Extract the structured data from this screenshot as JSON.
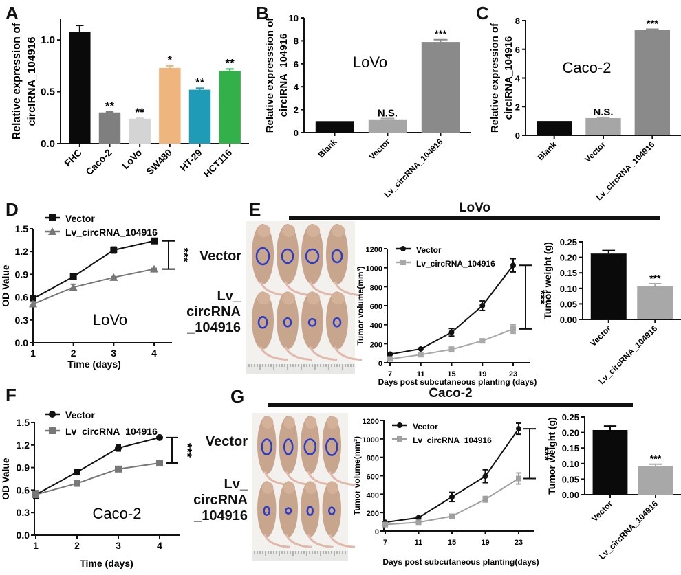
{
  "panels": {
    "A": "A",
    "B": "B",
    "C": "C",
    "D": "D",
    "E": "E",
    "F": "F",
    "G": "G"
  },
  "headers": {
    "E": "LoVo",
    "G": "Caco-2"
  },
  "mice_labels": {
    "vector": "Vector",
    "lv_line1": "Lv_",
    "lv_line2": "circRNA",
    "lv_line3": "_104916"
  },
  "chart_data": [
    {
      "id": "A",
      "type": "bar",
      "title": "",
      "ylabel": "Relative expression of circIRNA_104916",
      "ylabel_lines": [
        "Relative  expression of",
        "circIRNA_104916"
      ],
      "xlabel": "",
      "categories": [
        "FHC",
        "Caco-2",
        "LoVo",
        "SW480",
        "HT-29",
        "HCT116"
      ],
      "values": [
        1.08,
        0.3,
        0.24,
        0.73,
        0.52,
        0.7
      ],
      "errors": [
        0.06,
        0.005,
        0.005,
        0.02,
        0.015,
        0.02
      ],
      "significance": [
        "",
        "**",
        "**",
        "*",
        "**",
        "**"
      ],
      "colors": [
        "#0a0a0a",
        "#7f7f7f",
        "#d4d4d4",
        "#efb57e",
        "#1f9bb5",
        "#33b04a"
      ],
      "ylim": [
        0,
        1.2
      ],
      "yticks": [
        0.0,
        0.5,
        1.0
      ],
      "ytick_labels": [
        "0.0",
        "0.5",
        "1.0"
      ]
    },
    {
      "id": "B",
      "type": "bar",
      "annotation": "LoVo",
      "ylabel_lines": [
        "Relative  expresssion of",
        "circIRNA_104916"
      ],
      "categories": [
        "Blank",
        "Vector",
        "Lv_circRNA_104916"
      ],
      "values": [
        1.0,
        1.15,
        7.9
      ],
      "errors": [
        0,
        0.08,
        0.2
      ],
      "significance": [
        "",
        "N.S.",
        "***"
      ],
      "colors": [
        "#0a0a0a",
        "#a6a6a6",
        "#8a8a8a"
      ],
      "ylim": [
        0,
        10
      ],
      "yticks": [
        0,
        2,
        4,
        6,
        8,
        10
      ],
      "ytick_labels": [
        "0",
        "2",
        "4",
        "6",
        "8",
        "10"
      ]
    },
    {
      "id": "C",
      "type": "bar",
      "annotation": "Caco-2",
      "ylabel_lines": [
        "Relative  expression of",
        "circIRNA_104916"
      ],
      "categories": [
        "Blank",
        "Vector",
        "Lv_circRNA_104916"
      ],
      "values": [
        1.0,
        1.2,
        7.35
      ],
      "errors": [
        0,
        0.05,
        0.05
      ],
      "significance": [
        "",
        "N.S.",
        "***"
      ],
      "colors": [
        "#0a0a0a",
        "#a6a6a6",
        "#8a8a8a"
      ],
      "ylim": [
        0,
        8
      ],
      "yticks": [
        0,
        2,
        4,
        6,
        8
      ],
      "ytick_labels": [
        "0",
        "2",
        "4",
        "6",
        "8"
      ]
    },
    {
      "id": "D",
      "type": "line",
      "annotation": "LoVo",
      "xlabel": "Time (days)",
      "ylabel": "OD Value",
      "x": [
        1,
        2,
        3,
        4
      ],
      "series": [
        {
          "name": "Vector",
          "values": [
            0.58,
            0.87,
            1.22,
            1.34
          ],
          "errors": [
            0.02,
            0.03,
            0.04,
            0.01
          ],
          "color": "#111111",
          "marker": "square"
        },
        {
          "name": "Lv_circRNA_104916",
          "values": [
            0.51,
            0.73,
            0.86,
            0.97
          ],
          "errors": [
            0.03,
            0.04,
            0.01,
            0.01
          ],
          "color": "#777777",
          "marker": "triangle"
        }
      ],
      "significance": "***",
      "xlim": [
        1,
        4
      ],
      "ylim": [
        0,
        1.5
      ],
      "xticks": [
        1,
        2,
        3,
        4
      ],
      "yticks": [
        0.0,
        0.3,
        0.6,
        0.9,
        1.2,
        1.5
      ],
      "ytick_labels": [
        "0.0",
        "0.3",
        "0.6",
        "0.9",
        "1.2",
        "1.5"
      ],
      "legend": "top-left"
    },
    {
      "id": "E-volume",
      "type": "line",
      "xlabel": "Days post subcutaneous planting (days)",
      "ylabel": "Tumor volume(mm³)",
      "x": [
        7,
        11,
        15,
        19,
        23
      ],
      "series": [
        {
          "name": "Vector",
          "values": [
            90,
            145,
            320,
            600,
            1025
          ],
          "errors": [
            8,
            8,
            40,
            50,
            70
          ],
          "color": "#111111",
          "marker": "circle"
        },
        {
          "name": "Lv_circRNA_104916",
          "values": [
            40,
            85,
            140,
            230,
            355
          ],
          "errors": [
            8,
            10,
            25,
            20,
            45
          ],
          "color": "#a8a8a8",
          "marker": "square"
        }
      ],
      "significance": "***",
      "ylim": [
        0,
        1200
      ],
      "xticks": [
        7,
        11,
        15,
        19,
        23
      ],
      "yticks": [
        0,
        200,
        400,
        600,
        800,
        1000,
        1200
      ],
      "ytick_labels": [
        "0",
        "200",
        "400",
        "600",
        "800",
        "1000",
        "1200"
      ],
      "legend": "top-left"
    },
    {
      "id": "E-weight",
      "type": "bar",
      "ylabel": "Tumor weight (g)",
      "categories": [
        "Vector",
        "Lv_circRNA_104916"
      ],
      "values": [
        0.212,
        0.107
      ],
      "errors": [
        0.01,
        0.008
      ],
      "significance": [
        "",
        "***"
      ],
      "colors": [
        "#0a0a0a",
        "#a8a8a8"
      ],
      "ylim": [
        0,
        0.25
      ],
      "yticks": [
        0,
        0.05,
        0.1,
        0.15,
        0.2,
        0.25
      ],
      "ytick_labels": [
        "0.00",
        "0.05",
        "0.10",
        "0.15",
        "0.20",
        "0.25"
      ]
    },
    {
      "id": "F",
      "type": "line",
      "annotation": "Caco-2",
      "xlabel": "Time (days)",
      "ylabel": "OD Value",
      "x": [
        1,
        2,
        3,
        4
      ],
      "series": [
        {
          "name": "Vector",
          "values": [
            0.54,
            0.84,
            1.16,
            1.3
          ],
          "errors": [
            0.05,
            0.03,
            0.04,
            0.01
          ],
          "color": "#111111",
          "marker": "circle"
        },
        {
          "name": "Lv_circRNA_104916",
          "values": [
            0.54,
            0.69,
            0.88,
            0.96
          ],
          "errors": [
            0.02,
            0.01,
            0.01,
            0.01
          ],
          "color": "#777777",
          "marker": "square"
        }
      ],
      "significance": "***",
      "ylim": [
        0,
        1.5
      ],
      "xticks": [
        1,
        2,
        3,
        4
      ],
      "yticks": [
        0.0,
        0.3,
        0.6,
        0.9,
        1.2,
        1.5
      ],
      "ytick_labels": [
        "0.0",
        "0.3",
        "0.6",
        "0.9",
        "1.2",
        "1.5"
      ],
      "legend": "top-left"
    },
    {
      "id": "G-volume",
      "type": "line",
      "xlabel": "Days post subcutaneous planting(days)",
      "ylabel": "Tumor volume(mm³)",
      "x": [
        7,
        11,
        15,
        19,
        23
      ],
      "series": [
        {
          "name": "Vector",
          "values": [
            95,
            145,
            370,
            595,
            1110
          ],
          "errors": [
            8,
            8,
            50,
            70,
            60
          ],
          "color": "#111111",
          "marker": "circle"
        },
        {
          "name": "Lv_circRNA_104916",
          "values": [
            70,
            95,
            160,
            345,
            570
          ],
          "errors": [
            8,
            8,
            10,
            30,
            60
          ],
          "color": "#a0a0a0",
          "marker": "square"
        }
      ],
      "significance": "***",
      "ylim": [
        0,
        1200
      ],
      "xticks": [
        7,
        11,
        15,
        19,
        23
      ],
      "yticks": [
        0,
        200,
        400,
        600,
        800,
        1000,
        1200
      ],
      "ytick_labels": [
        "0",
        "200",
        "400",
        "600",
        "800",
        "1000",
        "1200"
      ],
      "legend": "top-left"
    },
    {
      "id": "G-weight",
      "type": "bar",
      "ylabel": "Tumor weight (g)",
      "categories": [
        "Vector",
        "Lv_circRNA_104916"
      ],
      "values": [
        0.208,
        0.092
      ],
      "errors": [
        0.013,
        0.006
      ],
      "significance": [
        "",
        "***"
      ],
      "colors": [
        "#0a0a0a",
        "#a8a8a8"
      ],
      "ylim": [
        0,
        0.25
      ],
      "yticks": [
        0,
        0.05,
        0.1,
        0.15,
        0.2,
        0.25
      ],
      "ytick_labels": [
        "0.00",
        "0.05",
        "0.10",
        "0.15",
        "0.20",
        "0.25"
      ]
    }
  ]
}
